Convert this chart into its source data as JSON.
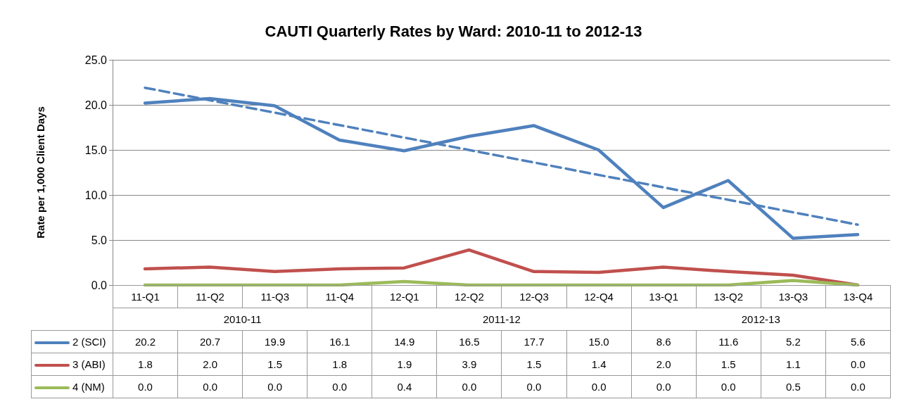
{
  "chart_data": {
    "type": "line",
    "title": "CAUTI Quarterly Rates by Ward: 2010-11 to 2012-13",
    "ylabel": "Rate per 1,000 Client Days",
    "categories": [
      "11-Q1",
      "11-Q2",
      "11-Q3",
      "11-Q4",
      "12-Q1",
      "12-Q2",
      "12-Q3",
      "12-Q4",
      "13-Q1",
      "13-Q2",
      "13-Q3",
      "13-Q4"
    ],
    "annotations": [
      "2010-11",
      "2011-12",
      "2012-13"
    ],
    "series": [
      {
        "name": "2 (SCI)",
        "color": "#4f81bd",
        "values": [
          20.2,
          20.7,
          19.9,
          16.1,
          14.9,
          16.5,
          17.7,
          15.0,
          8.6,
          11.6,
          5.2,
          5.6
        ],
        "value_labels": [
          "20.2",
          "20.7",
          "19.9",
          "16.1",
          "14.9",
          "16.5",
          "17.7",
          "15.0",
          "8.6",
          "11.6",
          "5.2",
          "5.6"
        ]
      },
      {
        "name": "3 (ABI)",
        "color": "#c0504d",
        "values": [
          1.8,
          2.0,
          1.5,
          1.8,
          1.9,
          3.9,
          1.5,
          1.4,
          2.0,
          1.5,
          1.1,
          0.0
        ],
        "value_labels": [
          "1.8",
          "2.0",
          "1.5",
          "1.8",
          "1.9",
          "3.9",
          "1.5",
          "1.4",
          "2.0",
          "1.5",
          "1.1",
          "0.0"
        ]
      },
      {
        "name": "4 (NM)",
        "color": "#9bbb59",
        "values": [
          0.0,
          0.0,
          0.0,
          0.0,
          0.4,
          0.0,
          0.0,
          0.0,
          0.0,
          0.0,
          0.5,
          0.0
        ],
        "value_labels": [
          "0.0",
          "0.0",
          "0.0",
          "0.0",
          "0.4",
          "0.0",
          "0.0",
          "0.0",
          "0.0",
          "0.0",
          "0.5",
          "0.0"
        ]
      },
      {
        "type": "line",
        "color": "#4f81bd",
        "line_style": "dashed",
        "x": [
          "11-Q1",
          "13-Q4"
        ],
        "values": [
          21.9,
          6.7
        ]
      }
    ],
    "ylim": [
      0,
      25
    ],
    "yticks": [
      {
        "value": 0,
        "label": "0.0"
      },
      {
        "value": 5,
        "label": "5.0"
      },
      {
        "value": 10,
        "label": "10.0"
      },
      {
        "value": 15,
        "label": "15.0"
      },
      {
        "value": 20,
        "label": "20.0"
      },
      {
        "value": 25,
        "label": "25.0"
      }
    ],
    "grid": "y",
    "legend": "bottom",
    "marker": "none",
    "line_style": "solid"
  }
}
